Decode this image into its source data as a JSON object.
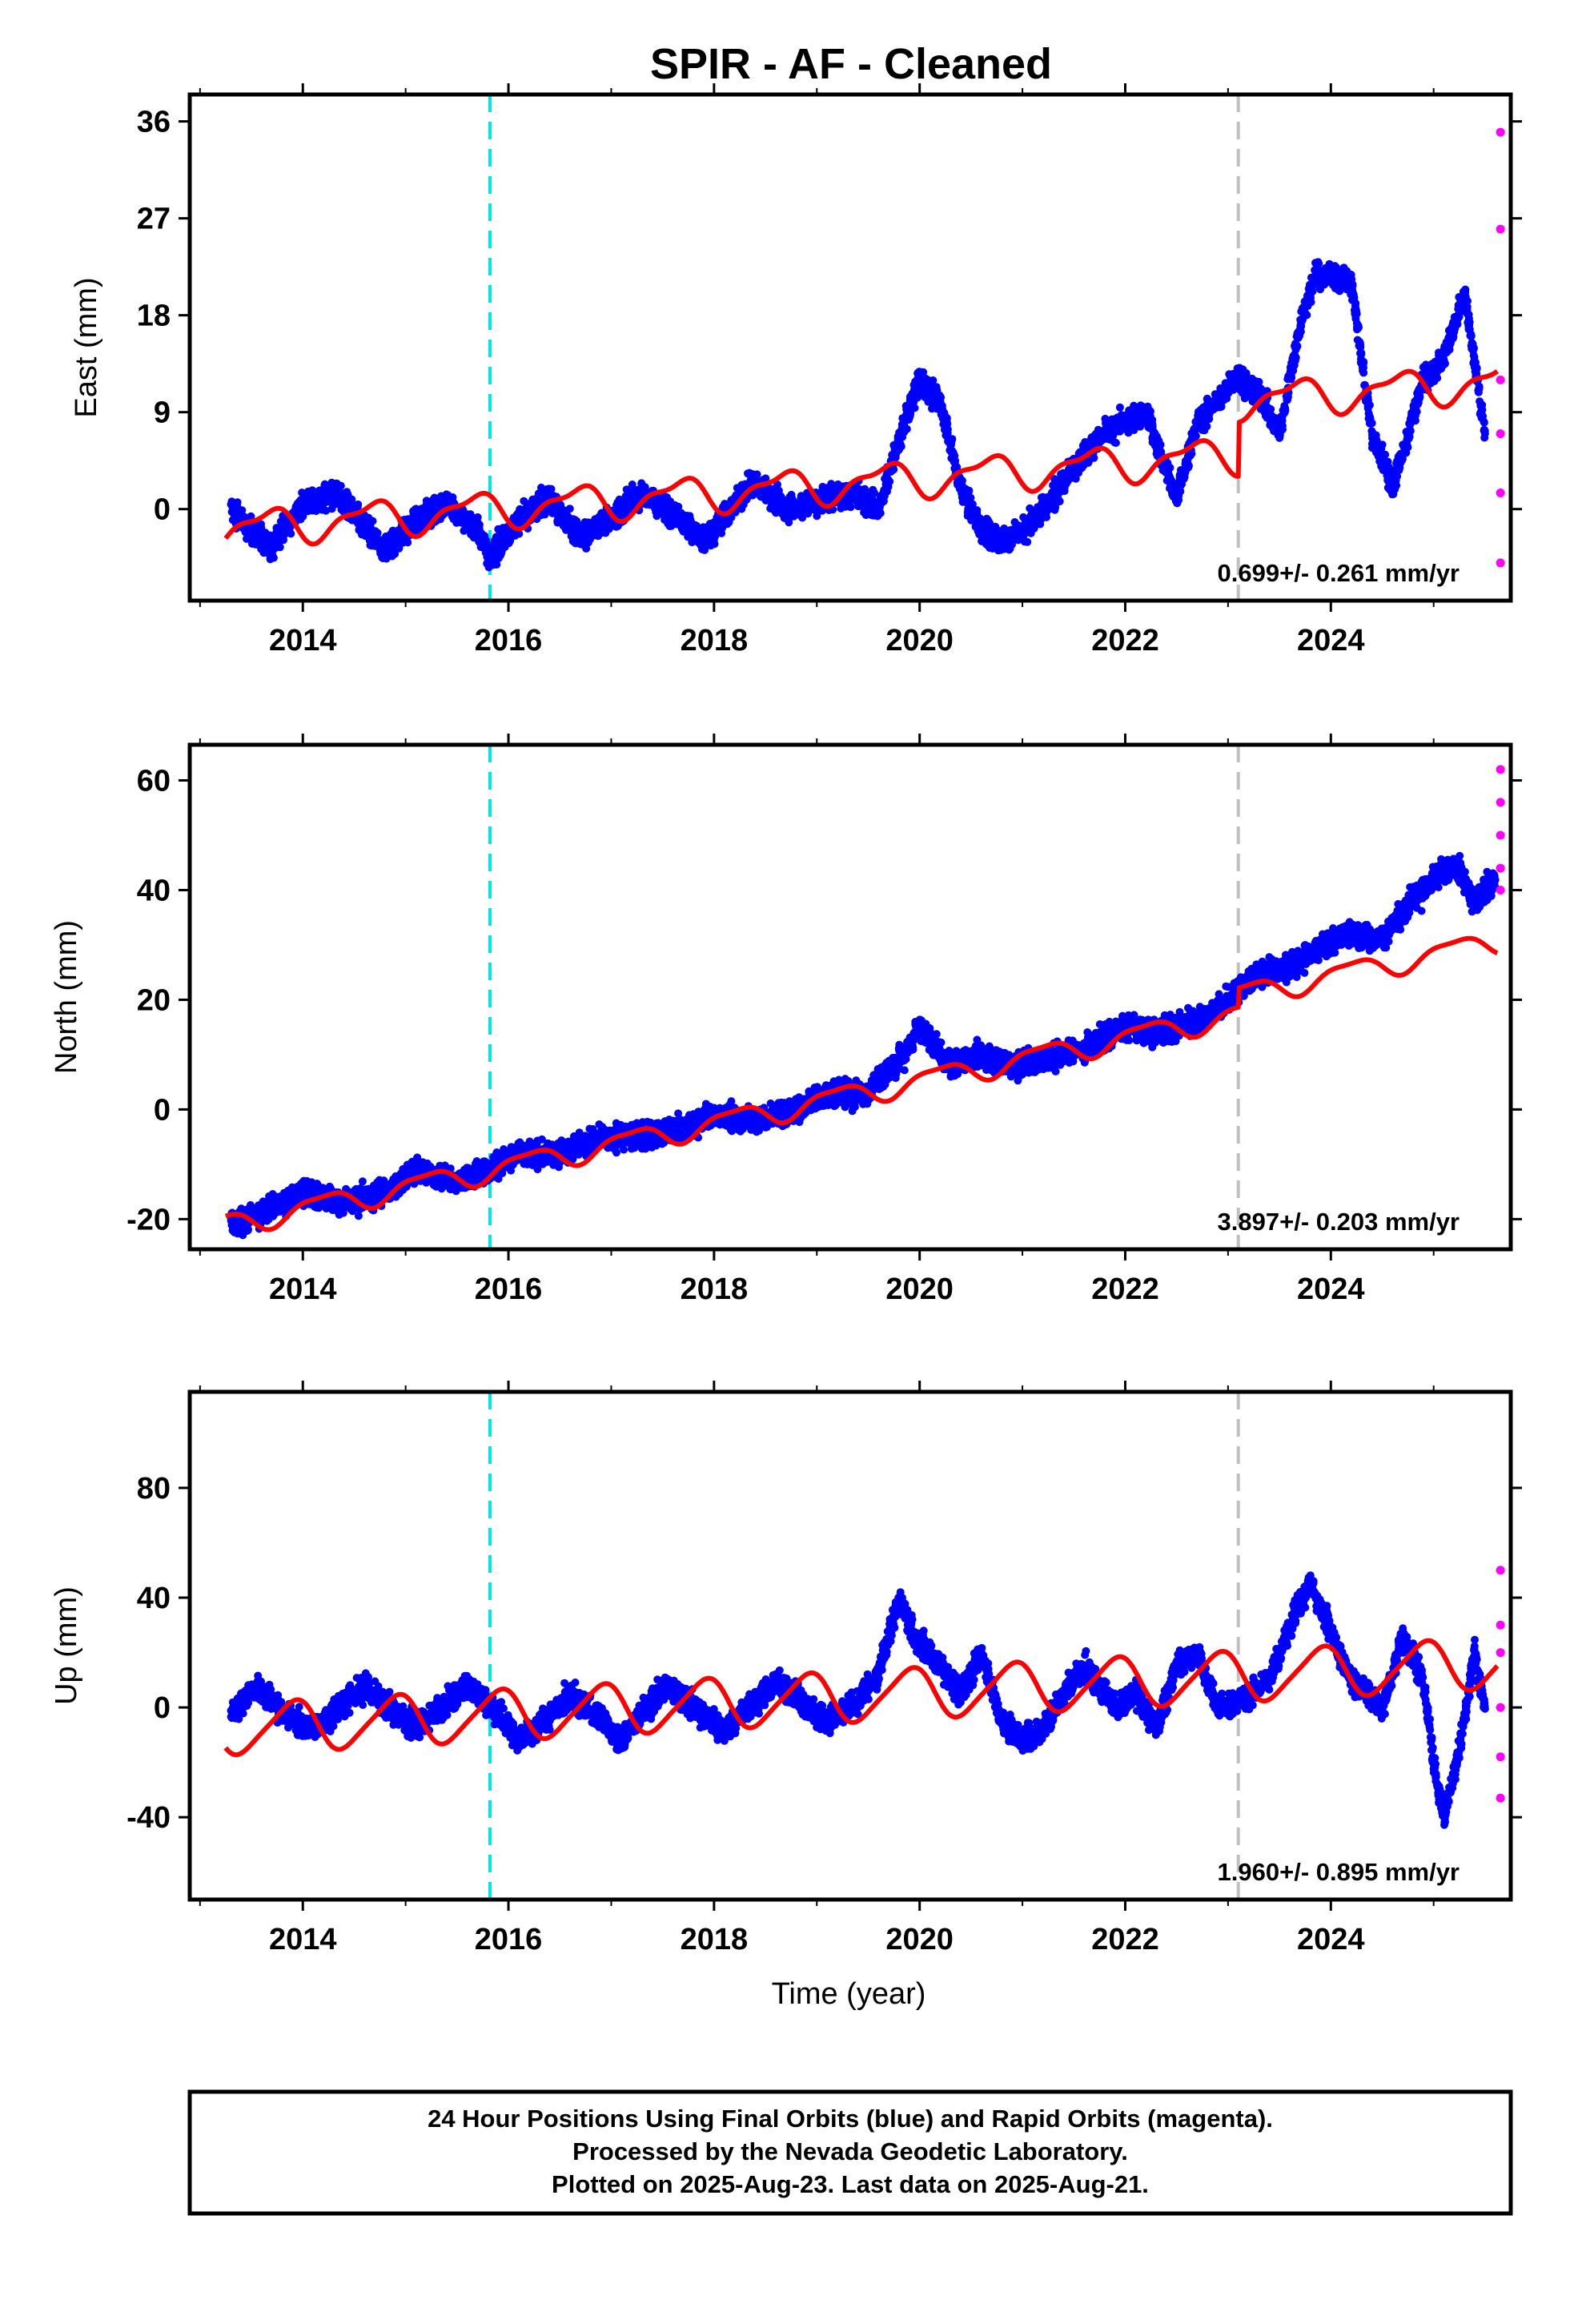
{
  "title": "SPIR  - AF - Cleaned",
  "colors": {
    "final_orbits": "#0000ff",
    "rapid_orbits": "#ff00ff",
    "model": "#ff0000",
    "event_cyan": "#00e5e5",
    "event_gray": "#c0c0c0"
  },
  "events": [
    {
      "x": 2015.82,
      "color": "cyan"
    },
    {
      "x": 2023.1,
      "color": "gray"
    }
  ],
  "chart_data": [
    {
      "type": "scatter",
      "ylabel": "East (mm)",
      "xlim": [
        2012.9,
        2025.75
      ],
      "ylim": [
        -8.5,
        38.5
      ],
      "xticks": [
        2014,
        2016,
        2018,
        2020,
        2022,
        2024
      ],
      "yticks": [
        0,
        9,
        18,
        27,
        36
      ],
      "rate_label": "0.699+/- 0.261 mm/yr",
      "observations": [
        [
          2013.3,
          0.0
        ],
        [
          2013.5,
          -2.0
        ],
        [
          2013.7,
          -3.5
        ],
        [
          2014.0,
          0.5
        ],
        [
          2014.3,
          1.5
        ],
        [
          2014.6,
          -1.5
        ],
        [
          2014.8,
          -4.0
        ],
        [
          2015.1,
          -1.0
        ],
        [
          2015.4,
          0.5
        ],
        [
          2015.7,
          -2.0
        ],
        [
          2015.82,
          -4.5
        ],
        [
          2016.1,
          -1.0
        ],
        [
          2016.4,
          1.0
        ],
        [
          2016.7,
          -2.5
        ],
        [
          2017.0,
          -1.0
        ],
        [
          2017.3,
          1.5
        ],
        [
          2017.7,
          -1.0
        ],
        [
          2017.9,
          -3.0
        ],
        [
          2018.2,
          0.5
        ],
        [
          2018.4,
          2.5
        ],
        [
          2018.7,
          0.0
        ],
        [
          2019.0,
          0.5
        ],
        [
          2019.3,
          1.5
        ],
        [
          2019.6,
          0.0
        ],
        [
          2019.85,
          8.0
        ],
        [
          2020.0,
          12.0
        ],
        [
          2020.2,
          10.0
        ],
        [
          2020.4,
          2.0
        ],
        [
          2020.6,
          -2.0
        ],
        [
          2020.8,
          -3.0
        ],
        [
          2021.0,
          -2.0
        ],
        [
          2021.3,
          1.0
        ],
        [
          2021.5,
          4.0
        ],
        [
          2021.8,
          7.0
        ],
        [
          2022.0,
          8.0
        ],
        [
          2022.2,
          9.0
        ],
        [
          2022.5,
          1.0
        ],
        [
          2022.7,
          8.0
        ],
        [
          2022.9,
          10.0
        ],
        [
          2023.05,
          12.0
        ],
        [
          2023.3,
          11.0
        ],
        [
          2023.5,
          7.0
        ],
        [
          2023.7,
          17.0
        ],
        [
          2023.85,
          22.0
        ],
        [
          2024.2,
          21.0
        ],
        [
          2024.4,
          7.0
        ],
        [
          2024.6,
          2.0
        ],
        [
          2024.9,
          12.0
        ],
        [
          2025.1,
          14.0
        ],
        [
          2025.3,
          20.0
        ],
        [
          2025.5,
          7.0
        ]
      ],
      "rapid_observations": [
        [
          2025.65,
          35.0
        ],
        [
          2025.65,
          26.0
        ],
        [
          2025.65,
          12.0
        ],
        [
          2025.65,
          7.0
        ],
        [
          2025.65,
          1.5
        ],
        [
          2025.65,
          -5.0
        ]
      ],
      "model_segments": [
        {
          "x0": 2013.25,
          "x1": 2023.1,
          "y0": -1.85,
          "rate": 0.699,
          "amp1": 1.5,
          "ph1": 0.6,
          "amp2": 0.6,
          "ph2": 0.3
        },
        {
          "x0": 2023.1,
          "x1": 2025.62,
          "y0": 10.07,
          "rate": 0.699,
          "amp1": 1.5,
          "ph1": 0.6,
          "amp2": 0.6,
          "ph2": 0.3
        }
      ]
    },
    {
      "type": "scatter",
      "ylabel": "North (mm)",
      "xlim": [
        2012.9,
        2025.75
      ],
      "ylim": [
        -25.5,
        66.5
      ],
      "xticks": [
        2014,
        2016,
        2018,
        2020,
        2022,
        2024
      ],
      "yticks": [
        -20,
        0,
        20,
        40,
        60
      ],
      "rate_label": "3.897+/- 0.203 mm/yr",
      "observations": [
        [
          2013.3,
          -21.0
        ],
        [
          2013.6,
          -19.0
        ],
        [
          2014.0,
          -15.0
        ],
        [
          2014.4,
          -17.0
        ],
        [
          2014.8,
          -15.0
        ],
        [
          2015.1,
          -11.0
        ],
        [
          2015.5,
          -13.0
        ],
        [
          2015.8,
          -11.0
        ],
        [
          2016.1,
          -8.0
        ],
        [
          2016.5,
          -8.0
        ],
        [
          2016.9,
          -5.0
        ],
        [
          2017.2,
          -5.0
        ],
        [
          2017.6,
          -4.0
        ],
        [
          2018.0,
          -1.0
        ],
        [
          2018.4,
          -2.0
        ],
        [
          2018.8,
          0.0
        ],
        [
          2019.1,
          3.0
        ],
        [
          2019.5,
          3.0
        ],
        [
          2019.85,
          10.0
        ],
        [
          2020.0,
          15.0
        ],
        [
          2020.3,
          8.0
        ],
        [
          2020.6,
          10.0
        ],
        [
          2020.9,
          8.0
        ],
        [
          2021.2,
          9.0
        ],
        [
          2021.6,
          11.0
        ],
        [
          2022.0,
          15.0
        ],
        [
          2022.4,
          14.0
        ],
        [
          2022.8,
          17.0
        ],
        [
          2023.0,
          20.0
        ],
        [
          2023.3,
          25.0
        ],
        [
          2023.6,
          26.0
        ],
        [
          2023.9,
          30.0
        ],
        [
          2024.2,
          32.0
        ],
        [
          2024.5,
          31.0
        ],
        [
          2024.8,
          38.0
        ],
        [
          2025.0,
          42.0
        ],
        [
          2025.2,
          45.0
        ],
        [
          2025.4,
          38.0
        ],
        [
          2025.6,
          42.0
        ]
      ],
      "rapid_observations": [
        [
          2025.65,
          62.0
        ],
        [
          2025.65,
          56.0
        ],
        [
          2025.65,
          50.0
        ],
        [
          2025.65,
          44.0
        ],
        [
          2025.65,
          40.0
        ]
      ],
      "model_segments": [
        {
          "x0": 2013.25,
          "x1": 2023.1,
          "y0": -21.0,
          "rate": 3.897,
          "amp1": 2.0,
          "ph1": 0.05,
          "amp2": 0.6,
          "ph2": 0.2
        },
        {
          "x0": 2023.1,
          "x1": 2025.62,
          "y0": 20.9,
          "rate": 3.897,
          "amp1": 2.0,
          "ph1": 0.05,
          "amp2": 0.6,
          "ph2": 0.2
        }
      ]
    },
    {
      "type": "scatter",
      "xlabel": "Time (year)",
      "ylabel": "Up (mm)",
      "xlim": [
        2012.9,
        2025.75
      ],
      "ylim": [
        -70,
        115
      ],
      "xticks": [
        2014,
        2016,
        2018,
        2020,
        2022,
        2024
      ],
      "yticks": [
        -40,
        0,
        40,
        80
      ],
      "rate_label": "1.960+/- 0.895 mm/yr",
      "observations": [
        [
          2013.3,
          -3.0
        ],
        [
          2013.55,
          8.0
        ],
        [
          2013.8,
          -2.0
        ],
        [
          2014.1,
          -8.0
        ],
        [
          2014.35,
          0.0
        ],
        [
          2014.6,
          8.0
        ],
        [
          2014.9,
          -2.0
        ],
        [
          2015.1,
          -7.0
        ],
        [
          2015.35,
          0.0
        ],
        [
          2015.6,
          8.0
        ],
        [
          2015.9,
          -2.0
        ],
        [
          2016.1,
          -12.0
        ],
        [
          2016.4,
          -3.0
        ],
        [
          2016.6,
          5.0
        ],
        [
          2016.9,
          -4.0
        ],
        [
          2017.1,
          -12.0
        ],
        [
          2017.35,
          0.0
        ],
        [
          2017.55,
          8.0
        ],
        [
          2017.9,
          -3.0
        ],
        [
          2018.1,
          -8.0
        ],
        [
          2018.35,
          0.0
        ],
        [
          2018.6,
          10.0
        ],
        [
          2018.9,
          0.0
        ],
        [
          2019.1,
          -5.0
        ],
        [
          2019.4,
          2.0
        ],
        [
          2019.6,
          12.0
        ],
        [
          2019.8,
          40.0
        ],
        [
          2019.95,
          25.0
        ],
        [
          2020.2,
          15.0
        ],
        [
          2020.4,
          5.0
        ],
        [
          2020.6,
          20.0
        ],
        [
          2020.8,
          -5.0
        ],
        [
          2021.0,
          -12.0
        ],
        [
          2021.2,
          -8.0
        ],
        [
          2021.4,
          5.0
        ],
        [
          2021.6,
          15.0
        ],
        [
          2021.9,
          0.0
        ],
        [
          2022.1,
          5.0
        ],
        [
          2022.3,
          -8.0
        ],
        [
          2022.5,
          15.0
        ],
        [
          2022.7,
          20.0
        ],
        [
          2022.9,
          0.0
        ],
        [
          2023.1,
          2.0
        ],
        [
          2023.4,
          10.0
        ],
        [
          2023.6,
          30.0
        ],
        [
          2023.8,
          45.0
        ],
        [
          2024.2,
          10.0
        ],
        [
          2024.5,
          0.0
        ],
        [
          2024.7,
          25.0
        ],
        [
          2024.9,
          10.0
        ],
        [
          2025.0,
          -20.0
        ],
        [
          2025.1,
          -40.0
        ],
        [
          2025.25,
          -15.0
        ],
        [
          2025.4,
          20.0
        ],
        [
          2025.5,
          0.0
        ]
      ],
      "rapid_observations": [
        [
          2025.65,
          50.0
        ],
        [
          2025.65,
          30.0
        ],
        [
          2025.65,
          20.0
        ],
        [
          2025.65,
          0.0
        ],
        [
          2025.65,
          -18.0
        ],
        [
          2025.65,
          -33.0
        ]
      ],
      "model_segments": [
        {
          "x0": 2013.25,
          "x1": 2023.1,
          "y0": -8.0,
          "rate": 1.96,
          "amp1": 9.0,
          "ph1": 0.35,
          "amp2": 1.5,
          "ph2": 0.1
        },
        {
          "x0": 2023.1,
          "x1": 2025.62,
          "y0": 11.3,
          "rate": 1.96,
          "amp1": 9.0,
          "ph1": 0.35,
          "amp2": 1.5,
          "ph2": 0.1
        }
      ]
    }
  ],
  "footer": {
    "line1": "24 Hour Positions Using Final Orbits (blue) and Rapid Orbits (magenta).",
    "line2": "Processed by the Nevada Geodetic Laboratory.",
    "line3": "Plotted on 2025-Aug-23. Last data on 2025-Aug-21."
  }
}
